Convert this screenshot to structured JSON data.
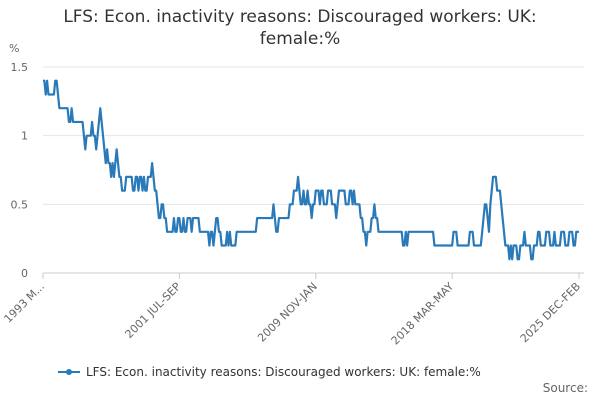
{
  "chart_data": {
    "type": "line",
    "title": "LFS: Econ. inactivity reasons: Discouraged workers: UK: female:%",
    "y_label": "%",
    "source": "Source:",
    "ylim": [
      0,
      1.5
    ],
    "yticks": [
      0,
      0.5,
      1,
      1.5
    ],
    "grid": true,
    "categories": [
      "1993 M...",
      null,
      null,
      null,
      null,
      null,
      null,
      null,
      null,
      null,
      null,
      null,
      null,
      null,
      null,
      null,
      null,
      null,
      null,
      null,
      null,
      null,
      null,
      null,
      null,
      null,
      null,
      null,
      null,
      null,
      null,
      null,
      null,
      null,
      null,
      null,
      null,
      null,
      null,
      null,
      null,
      null,
      null,
      null,
      null,
      null,
      null,
      null,
      null,
      null,
      null,
      null,
      null,
      null,
      null,
      null,
      null,
      null,
      null,
      null,
      null,
      null,
      null,
      null,
      null,
      null,
      null,
      null,
      null,
      null,
      null,
      null,
      null,
      null,
      null,
      null,
      null,
      null,
      null,
      null,
      null,
      null,
      null,
      null,
      null,
      null,
      null,
      null,
      null,
      null,
      null,
      null,
      null,
      null,
      null,
      null,
      null,
      null,
      null,
      null,
      "2001 JUL-SEP",
      null,
      null,
      null,
      null,
      null,
      null,
      null,
      null,
      null,
      null,
      null,
      null,
      null,
      null,
      null,
      null,
      null,
      null,
      null,
      null,
      null,
      null,
      null,
      null,
      null,
      null,
      null,
      null,
      null,
      null,
      null,
      null,
      null,
      null,
      null,
      null,
      null,
      null,
      null,
      null,
      null,
      null,
      null,
      null,
      null,
      null,
      null,
      null,
      null,
      null,
      null,
      null,
      null,
      null,
      null,
      null,
      null,
      null,
      null,
      null,
      null,
      null,
      null,
      null,
      null,
      null,
      null,
      null,
      null,
      null,
      null,
      null,
      null,
      null,
      null,
      null,
      null,
      null,
      null,
      null,
      null,
      null,
      null,
      null,
      null,
      null,
      null,
      null,
      null,
      null,
      null,
      null,
      null,
      null,
      null,
      null,
      null,
      null,
      null,
      "2009 NOV-JAN",
      null,
      null,
      null,
      null,
      null,
      null,
      null,
      null,
      null,
      null,
      null,
      null,
      null,
      null,
      null,
      null,
      null,
      null,
      null,
      null,
      null,
      null,
      null,
      null,
      null,
      null,
      null,
      null,
      null,
      null,
      null,
      null,
      null,
      null,
      null,
      null,
      null,
      null,
      null,
      null,
      null,
      null,
      null,
      null,
      null,
      null,
      null,
      null,
      null,
      null,
      null,
      null,
      null,
      null,
      null,
      null,
      null,
      null,
      null,
      null,
      null,
      null,
      null,
      null,
      null,
      null,
      null,
      null,
      null,
      null,
      null,
      null,
      null,
      null,
      null,
      null,
      null,
      null,
      null,
      null,
      null,
      null,
      null,
      null,
      null,
      null,
      null,
      null,
      null,
      null,
      null,
      null,
      null,
      null,
      null,
      null,
      null,
      null,
      null,
      "2018 MAR-MAY",
      null,
      null,
      null,
      null,
      null,
      null,
      null,
      null,
      null,
      null,
      null,
      null,
      null,
      null,
      null,
      null,
      null,
      null,
      null,
      null,
      null,
      null,
      null,
      null,
      null,
      null,
      null,
      null,
      null,
      null,
      null,
      null,
      null,
      null,
      null,
      null,
      null,
      null,
      null,
      null,
      null,
      null,
      null,
      null,
      null,
      null,
      null,
      null,
      null,
      null,
      null,
      null,
      null,
      null,
      null,
      null,
      null,
      null,
      null,
      null,
      null,
      null,
      null,
      null,
      null,
      null,
      null,
      null,
      null,
      null,
      null,
      null,
      null,
      null,
      null,
      null,
      null,
      null,
      null,
      null,
      null,
      null,
      null,
      null,
      null,
      null,
      null,
      null,
      null,
      null,
      null,
      null,
      "2025 DEC-FEB"
    ],
    "series": [
      {
        "name": "LFS: Econ. inactivity reasons: Discouraged workers: UK: female:%",
        "color": "#2a7ab9",
        "values": [
          1.4,
          1.4,
          1.3,
          1.4,
          1.3,
          1.3,
          1.3,
          1.3,
          1.3,
          1.4,
          1.4,
          1.3,
          1.2,
          1.2,
          1.2,
          1.2,
          1.2,
          1.2,
          1.2,
          1.1,
          1.1,
          1.2,
          1.1,
          1.1,
          1.1,
          1.1,
          1.1,
          1.1,
          1.1,
          1.1,
          1.0,
          0.9,
          1.0,
          1.0,
          1.0,
          1.0,
          1.1,
          1.0,
          1.0,
          0.9,
          1.0,
          1.1,
          1.2,
          1.1,
          1.0,
          0.9,
          0.8,
          0.9,
          0.8,
          0.8,
          0.7,
          0.8,
          0.7,
          0.8,
          0.9,
          0.8,
          0.7,
          0.7,
          0.6,
          0.6,
          0.6,
          0.7,
          0.7,
          0.7,
          0.7,
          0.7,
          0.6,
          0.6,
          0.7,
          0.7,
          0.6,
          0.7,
          0.7,
          0.6,
          0.7,
          0.6,
          0.6,
          0.7,
          0.7,
          0.7,
          0.8,
          0.7,
          0.6,
          0.6,
          0.5,
          0.4,
          0.4,
          0.5,
          0.5,
          0.4,
          0.4,
          0.3,
          0.3,
          0.3,
          0.3,
          0.3,
          0.4,
          0.3,
          0.3,
          0.4,
          0.4,
          0.3,
          0.3,
          0.4,
          0.3,
          0.3,
          0.4,
          0.4,
          0.4,
          0.3,
          0.4,
          0.4,
          0.4,
          0.4,
          0.4,
          0.3,
          0.3,
          0.3,
          0.3,
          0.3,
          0.3,
          0.3,
          0.2,
          0.3,
          0.3,
          0.2,
          0.3,
          0.4,
          0.4,
          0.3,
          0.3,
          0.2,
          0.2,
          0.2,
          0.2,
          0.3,
          0.2,
          0.3,
          0.2,
          0.2,
          0.2,
          0.2,
          0.3,
          0.3,
          0.3,
          0.3,
          0.3,
          0.3,
          0.3,
          0.3,
          0.3,
          0.3,
          0.3,
          0.3,
          0.3,
          0.3,
          0.3,
          0.4,
          0.4,
          0.4,
          0.4,
          0.4,
          0.4,
          0.4,
          0.4,
          0.4,
          0.4,
          0.4,
          0.4,
          0.5,
          0.4,
          0.3,
          0.3,
          0.4,
          0.4,
          0.4,
          0.4,
          0.4,
          0.4,
          0.4,
          0.4,
          0.5,
          0.5,
          0.5,
          0.6,
          0.6,
          0.6,
          0.7,
          0.6,
          0.5,
          0.5,
          0.6,
          0.5,
          0.5,
          0.6,
          0.5,
          0.5,
          0.4,
          0.5,
          0.5,
          0.6,
          0.6,
          0.6,
          0.5,
          0.6,
          0.6,
          0.5,
          0.5,
          0.5,
          0.6,
          0.6,
          0.6,
          0.5,
          0.5,
          0.5,
          0.4,
          0.5,
          0.6,
          0.6,
          0.6,
          0.6,
          0.6,
          0.5,
          0.5,
          0.5,
          0.6,
          0.6,
          0.5,
          0.6,
          0.5,
          0.5,
          0.5,
          0.5,
          0.4,
          0.4,
          0.3,
          0.3,
          0.2,
          0.3,
          0.3,
          0.3,
          0.4,
          0.4,
          0.5,
          0.4,
          0.4,
          0.3,
          0.3,
          0.3,
          0.3,
          0.3,
          0.3,
          0.3,
          0.3,
          0.3,
          0.3,
          0.3,
          0.3,
          0.3,
          0.3,
          0.3,
          0.3,
          0.3,
          0.3,
          0.2,
          0.2,
          0.3,
          0.2,
          0.3,
          0.3,
          0.3,
          0.3,
          0.3,
          0.3,
          0.3,
          0.3,
          0.3,
          0.3,
          0.3,
          0.3,
          0.3,
          0.3,
          0.3,
          0.3,
          0.3,
          0.3,
          0.3,
          0.2,
          0.2,
          0.2,
          0.2,
          0.2,
          0.2,
          0.2,
          0.2,
          0.2,
          0.2,
          0.2,
          0.2,
          0.2,
          0.2,
          0.3,
          0.3,
          0.3,
          0.2,
          0.2,
          0.2,
          0.2,
          0.2,
          0.2,
          0.2,
          0.2,
          0.2,
          0.3,
          0.3,
          0.3,
          0.2,
          0.2,
          0.2,
          0.2,
          0.2,
          0.2,
          0.3,
          0.4,
          0.5,
          0.5,
          0.4,
          0.3,
          0.5,
          0.6,
          0.7,
          0.7,
          0.7,
          0.6,
          0.6,
          0.6,
          0.5,
          0.4,
          0.3,
          0.2,
          0.2,
          0.2,
          0.1,
          0.2,
          0.1,
          0.2,
          0.2,
          0.2,
          0.1,
          0.1,
          0.2,
          0.2,
          0.2,
          0.3,
          0.2,
          0.2,
          0.2,
          0.2,
          0.1,
          0.1,
          0.2,
          0.2,
          0.2,
          0.3,
          0.3,
          0.2,
          0.2,
          0.2,
          0.2,
          0.3,
          0.3,
          0.3,
          0.2,
          0.2,
          0.2,
          0.3,
          0.2,
          0.2,
          0.2,
          0.2,
          0.3,
          0.3,
          0.3,
          0.2,
          0.2,
          0.2,
          0.3,
          0.3,
          0.3,
          0.2,
          0.2,
          0.3,
          0.3,
          0.3
        ]
      }
    ]
  }
}
